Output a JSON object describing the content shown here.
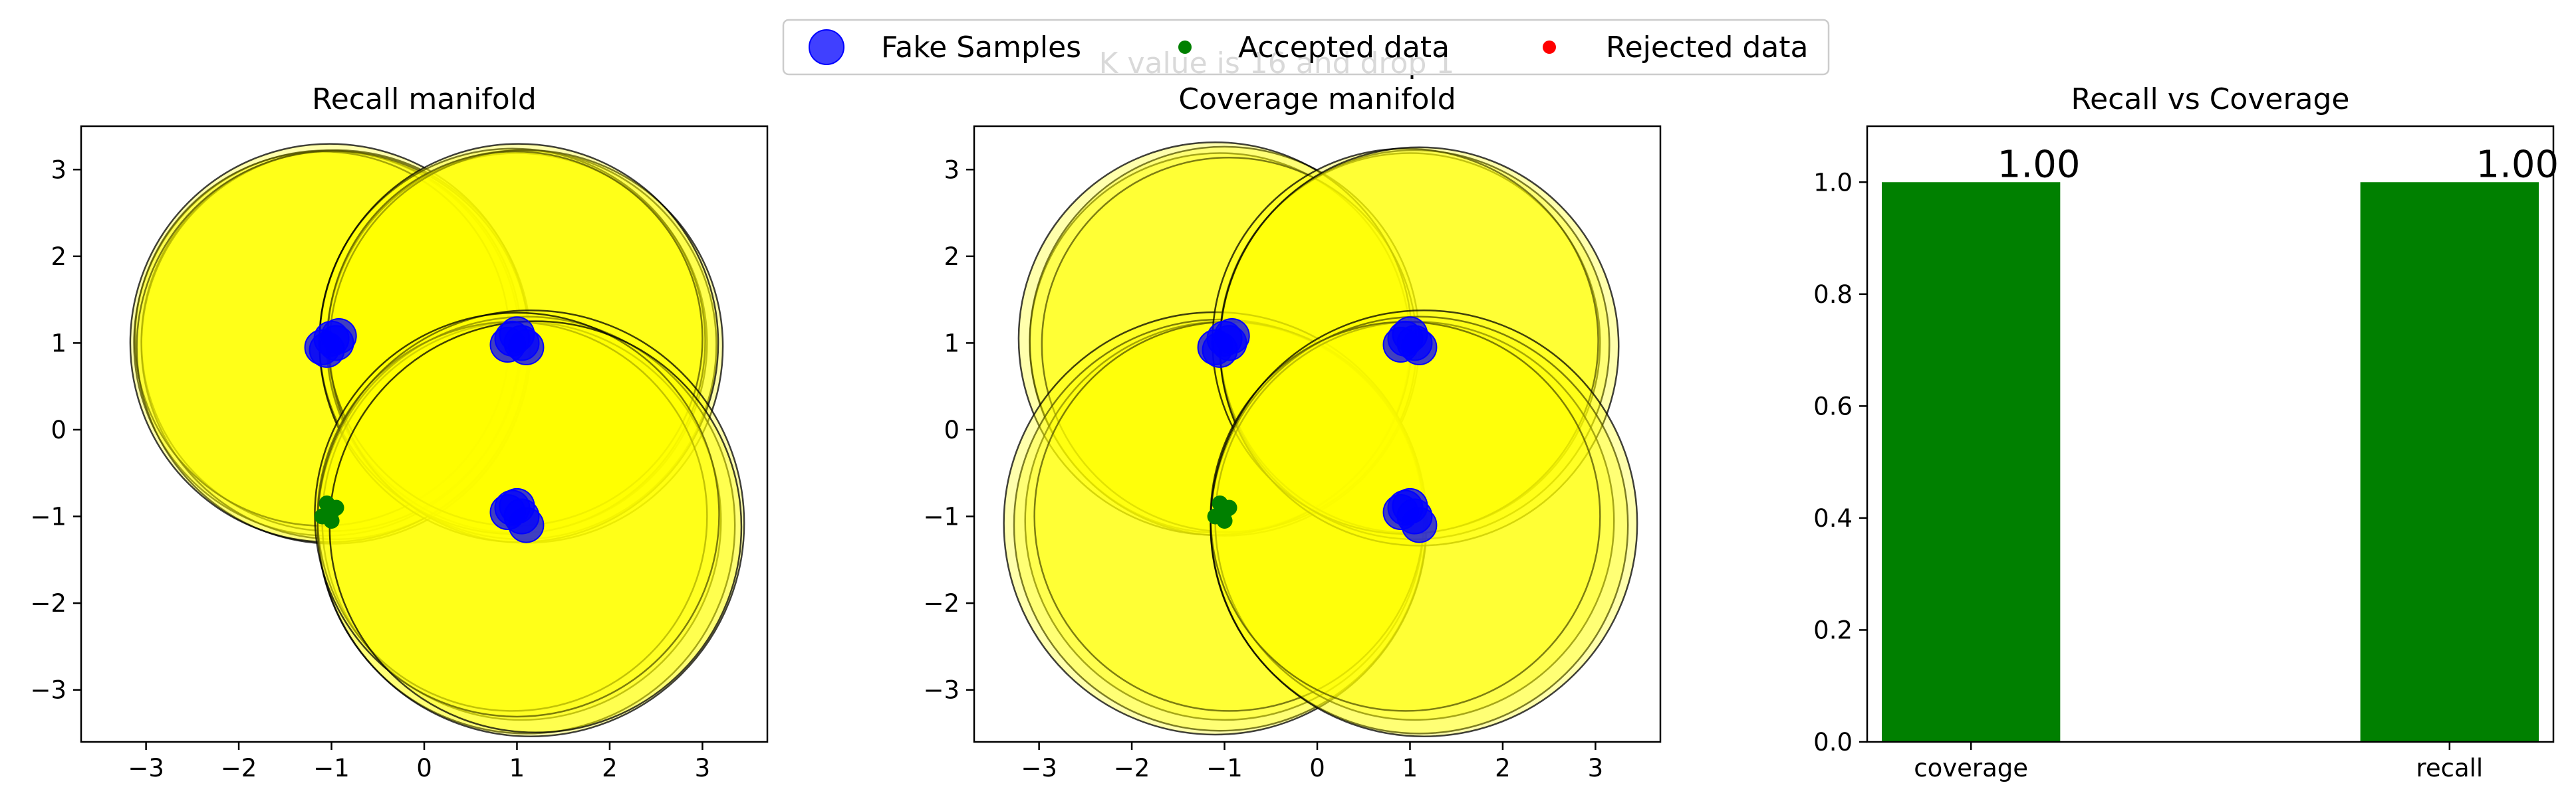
{
  "figure": {
    "suptitle": "K value is 16 and drop 1"
  },
  "legend": {
    "placement": "upper-center",
    "entries": [
      {
        "label": "Fake Samples",
        "color": "#0000ff",
        "marker": "large-circle"
      },
      {
        "label": "Accepted data",
        "color": "#008000",
        "marker": "small-circle"
      },
      {
        "label": "Rejected data",
        "color": "#ff0000",
        "marker": "small-circle"
      }
    ]
  },
  "colors": {
    "manifold_fill": "#ffff00",
    "manifold_edge": "#000000",
    "fake": "#0000ff",
    "accepted": "#008000",
    "rejected": "#ff0000",
    "bar": "#008000"
  },
  "chart_data": [
    {
      "type": "scatter",
      "title": "Recall manifold",
      "xlim": [
        -3.7,
        3.7
      ],
      "ylim": [
        -3.6,
        3.5
      ],
      "xticks": [
        -3,
        -2,
        -1,
        0,
        1,
        2,
        3
      ],
      "yticks": [
        -3,
        -2,
        -1,
        0,
        1,
        2,
        3
      ],
      "manifold_circles": [
        {
          "cx": -1.05,
          "cy": 1.0,
          "r": 2.08
        },
        {
          "cx": -1.0,
          "cy": 1.02,
          "r": 2.05
        },
        {
          "cx": -0.95,
          "cy": 0.98,
          "r": 2.1
        },
        {
          "cx": -1.1,
          "cy": 1.05,
          "r": 2.02
        },
        {
          "cx": -0.98,
          "cy": 0.95,
          "r": 2.12
        },
        {
          "cx": -1.02,
          "cy": 1.0,
          "r": 2.15
        },
        {
          "cx": 1.0,
          "cy": 1.0,
          "r": 2.05
        },
        {
          "cx": 1.05,
          "cy": 0.98,
          "r": 2.1
        },
        {
          "cx": 0.95,
          "cy": 1.02,
          "r": 2.08
        },
        {
          "cx": 1.1,
          "cy": 0.96,
          "r": 2.12
        },
        {
          "cx": 0.98,
          "cy": 1.05,
          "r": 2.02
        },
        {
          "cx": 1.02,
          "cy": 1.0,
          "r": 2.15
        },
        {
          "cx": 1.05,
          "cy": -1.05,
          "r": 2.15
        },
        {
          "cx": 1.1,
          "cy": -1.1,
          "r": 2.25
        },
        {
          "cx": 0.95,
          "cy": -1.0,
          "r": 2.1
        },
        {
          "cx": 1.15,
          "cy": -1.08,
          "r": 2.3
        },
        {
          "cx": 1.0,
          "cy": -0.98,
          "r": 2.18
        },
        {
          "cx": 1.2,
          "cy": -1.12,
          "r": 2.22
        }
      ],
      "fake_samples": [
        [
          -1.1,
          0.95
        ],
        [
          -1.0,
          1.05
        ],
        [
          -0.95,
          1.0
        ],
        [
          -1.05,
          0.92
        ],
        [
          -0.92,
          1.08
        ],
        [
          0.95,
          1.05
        ],
        [
          1.05,
          1.0
        ],
        [
          1.0,
          1.1
        ],
        [
          1.1,
          0.95
        ],
        [
          0.9,
          0.98
        ],
        [
          0.95,
          -0.9
        ],
        [
          1.05,
          -1.0
        ],
        [
          1.1,
          -1.1
        ],
        [
          0.9,
          -0.95
        ],
        [
          1.0,
          -0.88
        ]
      ],
      "accepted_data": [
        [
          -1.05,
          -0.85
        ],
        [
          -1.0,
          -0.95
        ],
        [
          -0.95,
          -0.9
        ],
        [
          -1.1,
          -1.0
        ],
        [
          -1.0,
          -1.05
        ]
      ],
      "rejected_data": []
    },
    {
      "type": "scatter",
      "title": "Coverage manifold",
      "xlim": [
        -3.7,
        3.7
      ],
      "ylim": [
        -3.6,
        3.5
      ],
      "xticks": [
        -3,
        -2,
        -1,
        0,
        1,
        2,
        3
      ],
      "yticks": [
        -3,
        -2,
        -1,
        0,
        1,
        2,
        3
      ],
      "manifold_circles": [
        {
          "cx": -1.05,
          "cy": 1.0,
          "r": 2.05
        },
        {
          "cx": -1.0,
          "cy": 1.02,
          "r": 2.1
        },
        {
          "cx": -0.95,
          "cy": 0.98,
          "r": 2.02
        },
        {
          "cx": -1.1,
          "cy": 1.05,
          "r": 2.12
        },
        {
          "cx": -1.0,
          "cy": -1.05,
          "r": 2.15
        },
        {
          "cx": -1.05,
          "cy": -1.1,
          "r": 2.22
        },
        {
          "cx": -0.95,
          "cy": -1.0,
          "r": 2.1
        },
        {
          "cx": -1.1,
          "cy": -1.08,
          "r": 2.28
        },
        {
          "cx": 1.0,
          "cy": 1.0,
          "r": 2.05
        },
        {
          "cx": 1.05,
          "cy": 0.98,
          "r": 2.1
        },
        {
          "cx": 0.95,
          "cy": 1.02,
          "r": 2.08
        },
        {
          "cx": 1.1,
          "cy": 0.96,
          "r": 2.15
        },
        {
          "cx": 1.05,
          "cy": -1.05,
          "r": 2.15
        },
        {
          "cx": 1.1,
          "cy": -1.1,
          "r": 2.25
        },
        {
          "cx": 0.95,
          "cy": -1.0,
          "r": 2.1
        },
        {
          "cx": 1.15,
          "cy": -1.08,
          "r": 2.3
        }
      ],
      "fake_samples": [
        [
          -1.1,
          0.95
        ],
        [
          -1.0,
          1.05
        ],
        [
          -0.95,
          1.0
        ],
        [
          -1.05,
          0.92
        ],
        [
          -0.92,
          1.08
        ],
        [
          0.95,
          1.05
        ],
        [
          1.05,
          1.0
        ],
        [
          1.0,
          1.1
        ],
        [
          1.1,
          0.95
        ],
        [
          0.9,
          0.98
        ],
        [
          0.95,
          -0.9
        ],
        [
          1.05,
          -1.0
        ],
        [
          1.1,
          -1.1
        ],
        [
          0.9,
          -0.95
        ],
        [
          1.0,
          -0.88
        ]
      ],
      "accepted_data": [
        [
          -1.05,
          -0.85
        ],
        [
          -1.0,
          -0.95
        ],
        [
          -0.95,
          -0.9
        ],
        [
          -1.1,
          -1.0
        ],
        [
          -1.0,
          -1.05
        ]
      ],
      "rejected_data": []
    },
    {
      "type": "bar",
      "title": "Recall vs Coverage",
      "categories": [
        "coverage",
        "recall"
      ],
      "values": [
        1.0,
        1.0
      ],
      "value_labels": [
        "1.00",
        "1.00"
      ],
      "ylim": [
        0.0,
        1.1
      ],
      "yticks": [
        "0.0",
        "0.2",
        "0.4",
        "0.6",
        "0.8",
        "1.0"
      ]
    }
  ]
}
